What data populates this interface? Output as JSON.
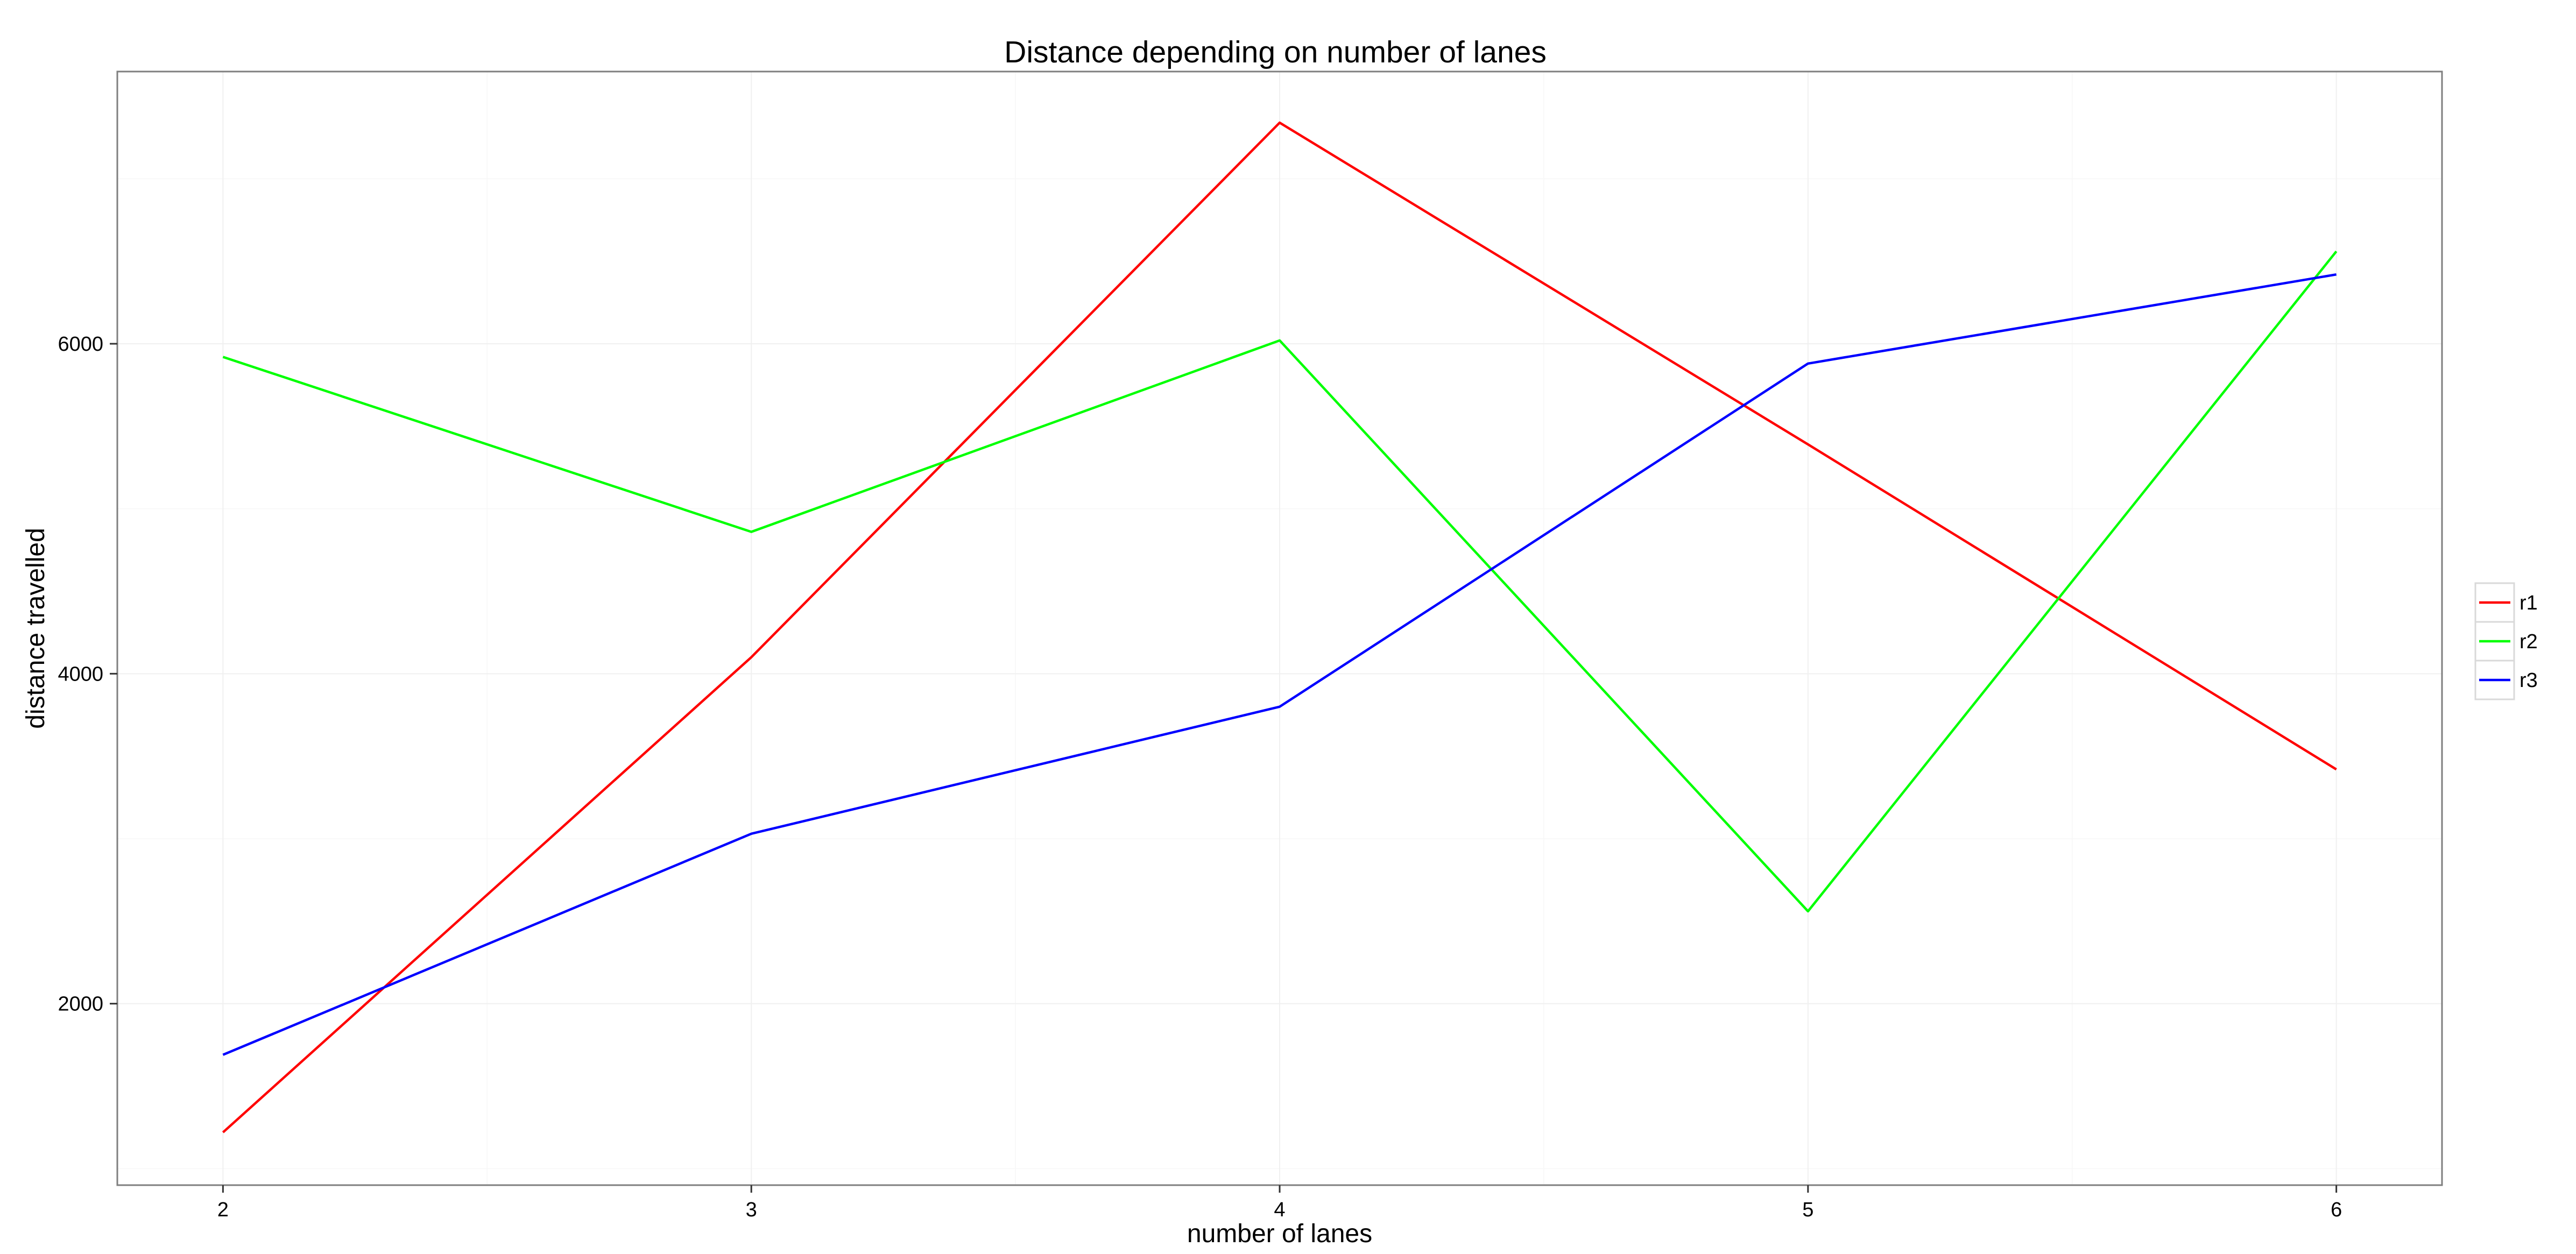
{
  "chart_data": {
    "type": "line",
    "title": "Distance depending on number of lanes",
    "xlabel": "number of lanes",
    "ylabel": "distance travelled",
    "x": [
      2,
      3,
      4,
      5,
      6
    ],
    "xlim": [
      1.8,
      6.2
    ],
    "ylim": [
      900,
      7650
    ],
    "x_ticks": [
      2,
      3,
      4,
      5,
      6
    ],
    "y_ticks": [
      2000,
      4000,
      6000
    ],
    "grid": true,
    "legend_position": "right",
    "series": [
      {
        "name": "r1",
        "color": "#ff0000",
        "values": [
          1220,
          4100,
          7340,
          5390,
          3420
        ]
      },
      {
        "name": "r2",
        "color": "#00ff00",
        "values": [
          5920,
          4860,
          6020,
          2560,
          6560
        ]
      },
      {
        "name": "r3",
        "color": "#0000ff",
        "values": [
          1690,
          3030,
          3800,
          5880,
          6420
        ]
      }
    ]
  }
}
